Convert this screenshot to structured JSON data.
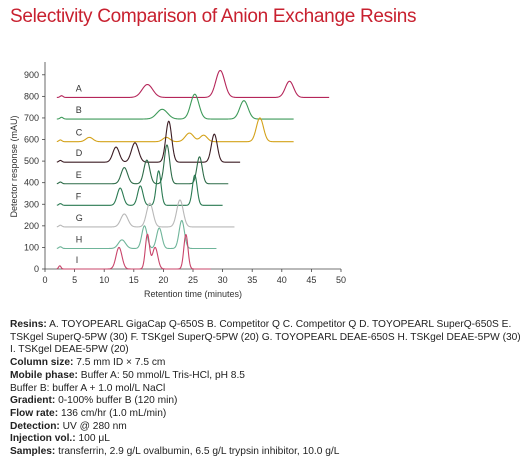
{
  "page": {
    "title": "Selectivity Comparison of Anion Exchange Resins"
  },
  "notes": [
    {
      "label": "Resins:",
      "text": " A. TOYOPEARL GigaCap Q-650S B. Competitor Q  C. Competitor Q  D. TOYOPEARL SuperQ-650S E. TSKgel SuperQ-5PW (30) F. TSKgel SuperQ-5PW (20) G. TOYOPEARL DEAE-650S H. TSKgel DEAE-5PW (30) I. TSKgel DEAE-5PW (20)"
    },
    {
      "label": "Column size:",
      "text": " 7.5 mm ID × 7.5 cm"
    },
    {
      "label": "Mobile phase:",
      "text": " Buffer A: 50 mmol/L Tris-HCl, pH 8.5"
    },
    {
      "label": "",
      "text": "Buffer B: buffer A + 1.0 mol/L NaCl"
    },
    {
      "label": "Gradient:",
      "text": " 0-100% buffer B (120 min)"
    },
    {
      "label": "Flow rate:",
      "text": " 136 cm/hr (1.0 mL/min)"
    },
    {
      "label": "Detection:",
      "text": " UV @ 280 nm"
    },
    {
      "label": "Injection vol.:",
      "text": " 100 μL"
    },
    {
      "label": "Samples:",
      "text": " transferrin, 2.9 g/L ovalbumin, 6.5 g/L trypsin inhibitor, 10.0 g/L"
    }
  ],
  "chart_data": {
    "type": "line",
    "title": "",
    "xlabel": "Retention time (minutes)",
    "ylabel": "Detector response (mAU)",
    "xlim": [
      0,
      50
    ],
    "ylim": [
      0,
      950
    ],
    "xticks": [
      0,
      5,
      10,
      15,
      20,
      25,
      30,
      35,
      40,
      45,
      50
    ],
    "yticks": [
      0,
      100,
      200,
      300,
      400,
      500,
      600,
      700,
      800,
      900
    ],
    "grid": false,
    "legend": "none",
    "series": [
      {
        "name": "A",
        "color": "#b5265a",
        "baseline": 795,
        "x_end": 48,
        "peaks": [
          [
            2.8,
            8,
            0.25
          ],
          [
            17.3,
            60,
            0.9
          ],
          [
            29.6,
            125,
            0.75
          ],
          [
            41.3,
            75,
            0.7
          ]
        ]
      },
      {
        "name": "B",
        "color": "#3e9a5a",
        "baseline": 695,
        "x_end": 42,
        "peaks": [
          [
            2.8,
            8,
            0.25
          ],
          [
            19.8,
            45,
            0.9
          ],
          [
            25.3,
            115,
            0.7
          ],
          [
            33.6,
            85,
            0.7
          ]
        ]
      },
      {
        "name": "C",
        "color": "#d4a21a",
        "baseline": 590,
        "x_end": 42,
        "peaks": [
          [
            2.6,
            8,
            0.25
          ],
          [
            7.5,
            20,
            0.6
          ],
          [
            20.5,
            20,
            0.6
          ],
          [
            24.4,
            40,
            0.7
          ],
          [
            26.8,
            30,
            0.6
          ],
          [
            36.3,
            110,
            0.6
          ]
        ]
      },
      {
        "name": "D",
        "color": "#3c1d24",
        "baseline": 495,
        "x_end": 33,
        "peaks": [
          [
            2.6,
            8,
            0.25
          ],
          [
            12.0,
            70,
            0.55
          ],
          [
            15.2,
            90,
            0.6
          ],
          [
            20.9,
            190,
            0.5
          ],
          [
            28.6,
            130,
            0.5
          ]
        ]
      },
      {
        "name": "E",
        "color": "#2d6b48",
        "baseline": 395,
        "x_end": 31,
        "peaks": [
          [
            2.6,
            8,
            0.25
          ],
          [
            13.4,
            75,
            0.55
          ],
          [
            17.2,
            110,
            0.5
          ],
          [
            20.6,
            180,
            0.45
          ],
          [
            26.1,
            125,
            0.45
          ]
        ]
      },
      {
        "name": "F",
        "color": "#2a7a52",
        "baseline": 295,
        "x_end": 30,
        "peaks": [
          [
            2.6,
            8,
            0.25
          ],
          [
            12.7,
            80,
            0.5
          ],
          [
            16.1,
            90,
            0.45
          ],
          [
            19.2,
            160,
            0.4
          ],
          [
            25.3,
            140,
            0.4
          ]
        ]
      },
      {
        "name": "G",
        "color": "#b8b8b8",
        "baseline": 195,
        "x_end": 32,
        "peaks": [
          [
            2.6,
            8,
            0.25
          ],
          [
            13.4,
            60,
            0.6
          ],
          [
            17.7,
            110,
            0.55
          ],
          [
            22.8,
            125,
            0.55
          ]
        ]
      },
      {
        "name": "H",
        "color": "#6fb59a",
        "baseline": 95,
        "x_end": 29,
        "peaks": [
          [
            2.6,
            8,
            0.25
          ],
          [
            13.0,
            40,
            0.6
          ],
          [
            16.8,
            105,
            0.45
          ],
          [
            19.3,
            95,
            0.45
          ],
          [
            23.1,
            130,
            0.45
          ]
        ]
      },
      {
        "name": "I",
        "color": "#c9446a",
        "baseline": 0,
        "x_end": 28,
        "peaks": [
          [
            2.5,
            15,
            0.2
          ],
          [
            12.5,
            100,
            0.5
          ],
          [
            17.3,
            160,
            0.35
          ],
          [
            18.6,
            100,
            0.45
          ],
          [
            23.8,
            160,
            0.35
          ]
        ]
      }
    ]
  }
}
